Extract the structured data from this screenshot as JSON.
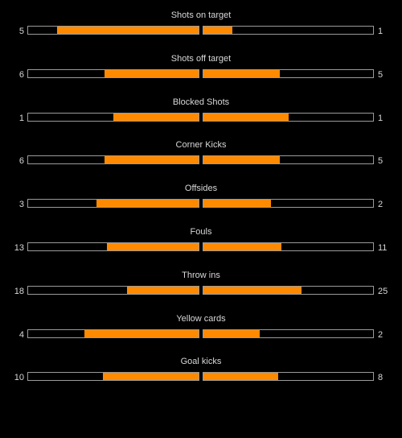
{
  "colors": {
    "background": "#000000",
    "bar_fill": "#ff8a00",
    "bar_border": "#9a9a9a",
    "text": "#d8d8d8"
  },
  "stats": [
    {
      "label": "Shots on target",
      "home": "5",
      "away": "1",
      "home_fill": 0.83,
      "away_fill": 0.17
    },
    {
      "label": "Shots off target",
      "home": "6",
      "away": "5",
      "home_fill": 0.55,
      "away_fill": 0.45
    },
    {
      "label": "Blocked Shots",
      "home": "1",
      "away": "1",
      "home_fill": 0.5,
      "away_fill": 0.5
    },
    {
      "label": "Corner Kicks",
      "home": "6",
      "away": "5",
      "home_fill": 0.55,
      "away_fill": 0.45
    },
    {
      "label": "Offsides",
      "home": "3",
      "away": "2",
      "home_fill": 0.6,
      "away_fill": 0.4
    },
    {
      "label": "Fouls",
      "home": "13",
      "away": "11",
      "home_fill": 0.54,
      "away_fill": 0.46
    },
    {
      "label": "Throw ins",
      "home": "18",
      "away": "25",
      "home_fill": 0.42,
      "away_fill": 0.58
    },
    {
      "label": "Yellow cards",
      "home": "4",
      "away": "2",
      "home_fill": 0.67,
      "away_fill": 0.33
    },
    {
      "label": "Goal kicks",
      "home": "10",
      "away": "8",
      "home_fill": 0.56,
      "away_fill": 0.44
    }
  ]
}
